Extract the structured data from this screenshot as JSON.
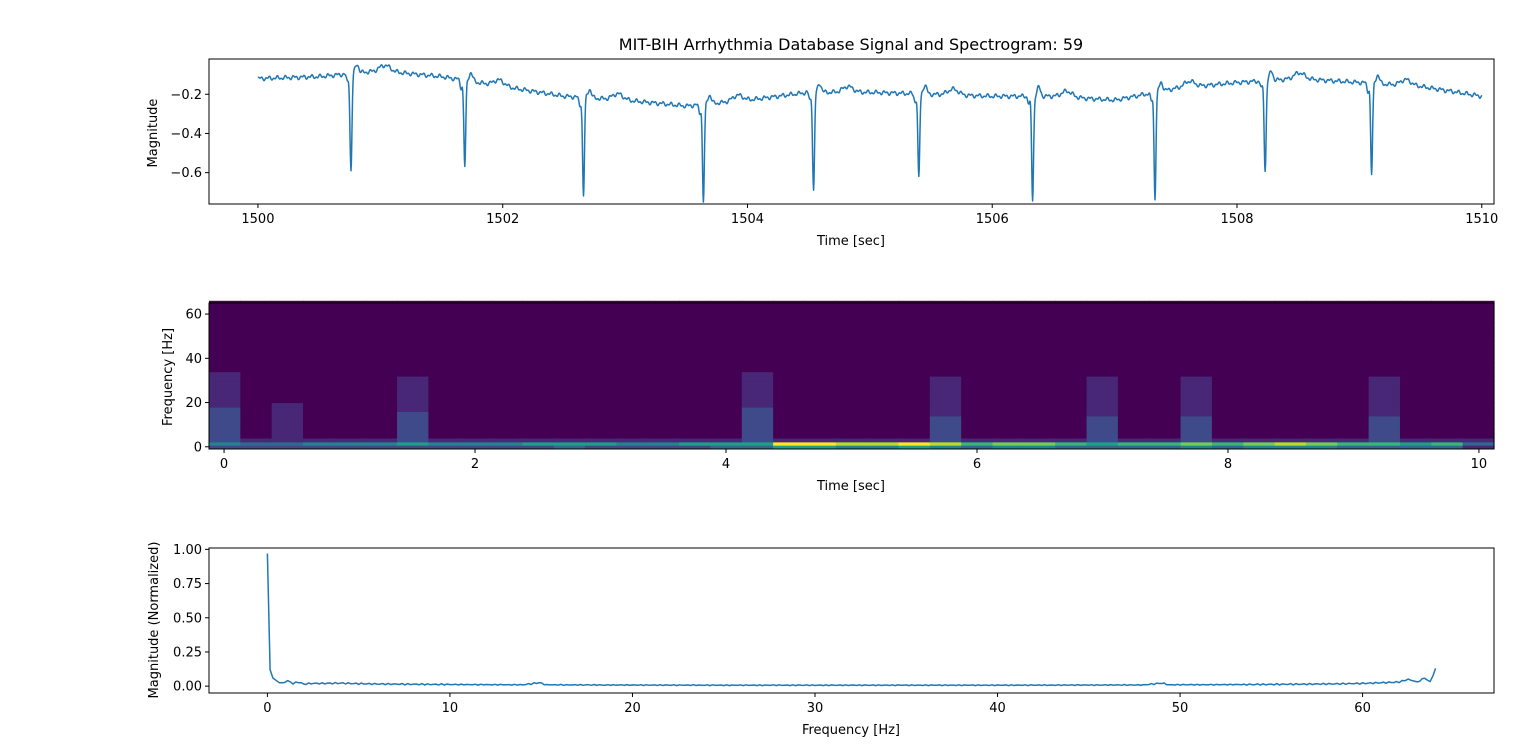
{
  "figure": {
    "title": "MIT-BIH Arrhythmia Database Signal and Spectrogram: 59"
  },
  "colors": {
    "line": "#1f77b4",
    "colormap": [
      "#440154",
      "#482777",
      "#3e4a89",
      "#31688e",
      "#26828e",
      "#1f9e89",
      "#35b779",
      "#6ece58",
      "#b5de2b",
      "#fde725"
    ]
  },
  "chart_data": [
    {
      "type": "line",
      "id": "signal",
      "xlabel": "Time [sec]",
      "ylabel": "Magnitude",
      "xlim": [
        1499.6,
        1510.1
      ],
      "ylim": [
        -0.76,
        -0.02
      ],
      "xticks": [
        1500,
        1502,
        1504,
        1506,
        1508,
        1510
      ],
      "xtick_labels": [
        "1500",
        "1502",
        "1504",
        "1506",
        "1508",
        "1510"
      ],
      "yticks": [
        -0.2,
        -0.4,
        -0.6
      ],
      "ytick_labels": [
        "−0.2",
        "−0.4",
        "−0.6"
      ],
      "series": [
        {
          "baseline": [
            [
              1500.0,
              -0.12
            ],
            [
              1500.5,
              -0.11
            ],
            [
              1501.0,
              -0.08
            ],
            [
              1501.5,
              -0.11
            ],
            [
              1502.0,
              -0.16
            ],
            [
              1502.5,
              -0.21
            ],
            [
              1503.0,
              -0.23
            ],
            [
              1503.5,
              -0.26
            ],
            [
              1504.0,
              -0.23
            ],
            [
              1504.5,
              -0.19
            ],
            [
              1505.0,
              -0.19
            ],
            [
              1505.5,
              -0.2
            ],
            [
              1506.0,
              -0.21
            ],
            [
              1506.5,
              -0.21
            ],
            [
              1507.0,
              -0.23
            ],
            [
              1507.5,
              -0.17
            ],
            [
              1508.0,
              -0.14
            ],
            [
              1508.5,
              -0.12
            ],
            [
              1509.0,
              -0.14
            ],
            [
              1509.5,
              -0.16
            ],
            [
              1510.0,
              -0.21
            ]
          ],
          "beats": [
            {
              "t": 1500.76,
              "min": -0.59
            },
            {
              "t": 1501.69,
              "min": -0.57
            },
            {
              "t": 1502.66,
              "min": -0.72
            },
            {
              "t": 1503.64,
              "min": -0.75
            },
            {
              "t": 1504.54,
              "min": -0.69
            },
            {
              "t": 1505.4,
              "min": -0.63
            },
            {
              "t": 1506.33,
              "min": -0.74
            },
            {
              "t": 1507.33,
              "min": -0.73
            },
            {
              "t": 1508.23,
              "min": -0.59
            },
            {
              "t": 1509.1,
              "min": -0.61
            }
          ]
        }
      ]
    },
    {
      "type": "heatmap",
      "id": "spectrogram",
      "xlabel": "Time [sec]",
      "ylabel": "Frequency [Hz]",
      "xlim": [
        -0.12,
        10.12
      ],
      "ylim": [
        -1,
        65
      ],
      "xticks": [
        0,
        2,
        4,
        6,
        8,
        10
      ],
      "xtick_labels": [
        "0",
        "2",
        "4",
        "6",
        "8",
        "10"
      ],
      "yticks": [
        0,
        20,
        40,
        60
      ],
      "ytick_labels": [
        "0",
        "20",
        "40",
        "60"
      ],
      "n_time_bins": 41,
      "freq_bands_hz": [
        [
          -1,
          0.5,
          "dc"
        ],
        [
          0.5,
          2,
          "low"
        ],
        [
          2,
          65,
          "high"
        ]
      ],
      "low_band_level": [
        0.4,
        0.35,
        0.38,
        0.4,
        0.42,
        0.45,
        0.5,
        0.45,
        0.4,
        0.45,
        0.5,
        0.55,
        0.5,
        0.45,
        0.48,
        0.5,
        0.55,
        0.6,
        0.95,
        0.98,
        0.9,
        0.85,
        1.0,
        0.85,
        0.7,
        0.75,
        0.8,
        0.65,
        0.6,
        0.65,
        0.7,
        0.75,
        0.7,
        0.8,
        0.9,
        0.75,
        0.7,
        0.65,
        0.6,
        0.62,
        0.3
      ],
      "beat_column_level": [
        0.22,
        0.05,
        0.08,
        0.05,
        0.0,
        0.0,
        0.2,
        0.0,
        0.0,
        0.0,
        0.0,
        0.0,
        0.05,
        0.0,
        0.0,
        0.0,
        0.05,
        0.22,
        0.0,
        0.0,
        0.0,
        0.05,
        0.0,
        0.18,
        0.0,
        0.05,
        0.0,
        0.0,
        0.18,
        0.0,
        0.0,
        0.18,
        0.0,
        0.05,
        0.0,
        0.0,
        0.0,
        0.18,
        0.0,
        0.0,
        0.0
      ]
    },
    {
      "type": "line",
      "id": "spectrum",
      "xlabel": "Frequency [Hz]",
      "ylabel": "Magnitude (Normalized)",
      "xlim": [
        -3.2,
        67.2
      ],
      "ylim": [
        -0.05,
        1.01
      ],
      "xticks": [
        0,
        10,
        20,
        30,
        40,
        50,
        60
      ],
      "xtick_labels": [
        "0",
        "10",
        "20",
        "30",
        "40",
        "50",
        "60"
      ],
      "yticks": [
        0.0,
        0.25,
        0.5,
        0.75,
        1.0
      ],
      "ytick_labels": [
        "0.00",
        "0.25",
        "0.50",
        "0.75",
        "1.00"
      ],
      "series": [
        {
          "points": [
            [
              0,
              0.97
            ],
            [
              0.15,
              0.12
            ],
            [
              0.3,
              0.06
            ],
            [
              0.5,
              0.04
            ],
            [
              0.8,
              0.02
            ],
            [
              1.1,
              0.04
            ],
            [
              1.4,
              0.02
            ],
            [
              1.7,
              0.03
            ],
            [
              2.0,
              0.015
            ],
            [
              2.4,
              0.02
            ],
            [
              3,
              0.02
            ],
            [
              4,
              0.022
            ],
            [
              5,
              0.018
            ],
            [
              6,
              0.016
            ],
            [
              8,
              0.014
            ],
            [
              10,
              0.012
            ],
            [
              12,
              0.011
            ],
            [
              14,
              0.01
            ],
            [
              14.9,
              0.025
            ],
            [
              15.3,
              0.01
            ],
            [
              17,
              0.009
            ],
            [
              20,
              0.008
            ],
            [
              25,
              0.007
            ],
            [
              30,
              0.007
            ],
            [
              35,
              0.007
            ],
            [
              40,
              0.007
            ],
            [
              45,
              0.008
            ],
            [
              48,
              0.009
            ],
            [
              49,
              0.022
            ],
            [
              49.4,
              0.01
            ],
            [
              52,
              0.011
            ],
            [
              55,
              0.013
            ],
            [
              58,
              0.016
            ],
            [
              60,
              0.02
            ],
            [
              61,
              0.025
            ],
            [
              62,
              0.03
            ],
            [
              62.5,
              0.05
            ],
            [
              63,
              0.03
            ],
            [
              63.4,
              0.06
            ],
            [
              63.7,
              0.03
            ],
            [
              64,
              0.13
            ]
          ]
        }
      ]
    }
  ]
}
